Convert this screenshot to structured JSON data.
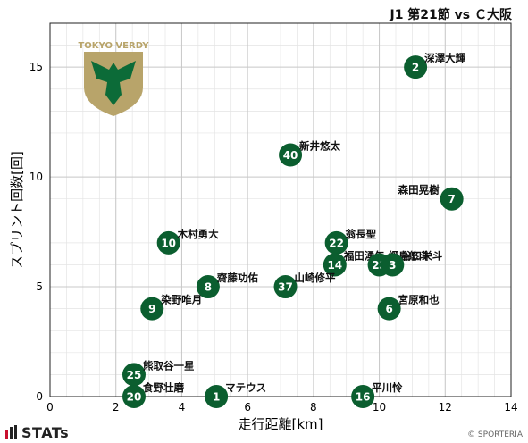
{
  "header": {
    "title": "J1 第21節 vs Ｃ大阪"
  },
  "footer": {
    "brand": "STATs",
    "credit": "© SPORTERIA"
  },
  "logo": {
    "team_text": "TOKYO VERDY",
    "colors": {
      "gold": "#b8a46a",
      "green": "#0c6b38"
    }
  },
  "colors": {
    "marker": "#0b5e2f",
    "marker_text": "#ffffff",
    "grid": "#c8c8c8",
    "grid_minor": "#e4e4e4"
  },
  "chart_data": {
    "type": "scatter",
    "title": "J1 第21節 vs Ｃ大阪",
    "xlabel": "走行距離[km]",
    "ylabel": "スプリント回数[回]",
    "xlim": [
      0,
      14
    ],
    "ylim": [
      0,
      17
    ],
    "xticks": [
      0,
      2,
      4,
      6,
      8,
      10,
      12,
      14
    ],
    "yticks": [
      0,
      5,
      10,
      15
    ],
    "grid": true,
    "points": [
      {
        "number": "2",
        "name": "深澤大輝",
        "x": 11.1,
        "y": 15
      },
      {
        "number": "40",
        "name": "新井悠太",
        "x": 7.3,
        "y": 11
      },
      {
        "number": "7",
        "name": "森田晃樹",
        "x": 12.2,
        "y": 9
      },
      {
        "number": "10",
        "name": "木村勇大",
        "x": 3.6,
        "y": 7
      },
      {
        "number": "22",
        "name": "翁長聖",
        "x": 8.7,
        "y": 7
      },
      {
        "number": "14",
        "name": "福田湧矢",
        "x": 8.65,
        "y": 6
      },
      {
        "number": "23",
        "name": "綱島悠斗",
        "x": 10.0,
        "y": 6
      },
      {
        "number": "3",
        "name": "谷口栄斗",
        "x": 10.4,
        "y": 6
      },
      {
        "number": "8",
        "name": "齋藤功佑",
        "x": 4.8,
        "y": 5
      },
      {
        "number": "37",
        "name": "山崎修平",
        "x": 7.15,
        "y": 5
      },
      {
        "number": "9",
        "name": "染野唯月",
        "x": 3.1,
        "y": 4
      },
      {
        "number": "6",
        "name": "宮原和也",
        "x": 10.3,
        "y": 4
      },
      {
        "number": "25",
        "name": "熊取谷一星",
        "x": 2.55,
        "y": 1
      },
      {
        "number": "20",
        "name": "食野壮磨",
        "x": 2.55,
        "y": 0
      },
      {
        "number": "1",
        "name": "マテウス",
        "x": 5.05,
        "y": 0
      },
      {
        "number": "16",
        "name": "平川怜",
        "x": 9.5,
        "y": 0
      }
    ]
  }
}
